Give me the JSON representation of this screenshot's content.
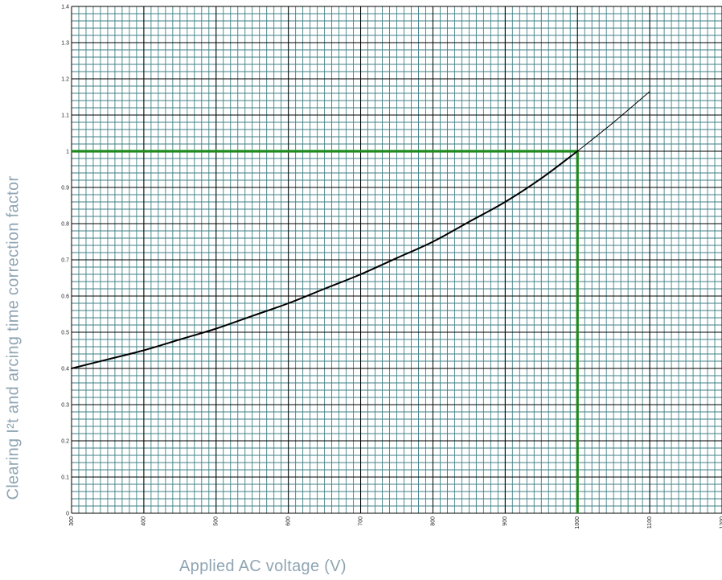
{
  "chart_data": {
    "type": "line",
    "title": "",
    "xlabel": "Applied AC voltage (V)",
    "ylabel": "Clearing I²t and arcing time correction factor",
    "xlim": [
      300,
      1200
    ],
    "ylim": [
      0,
      1.4
    ],
    "x_ticks": [
      "300",
      "400",
      "500",
      "600",
      "700",
      "800",
      "900",
      "1000",
      "1100",
      "1200"
    ],
    "y_ticks": [
      "0",
      "0.1",
      "0.2",
      "0.3",
      "0.4",
      "0.5",
      "0.6",
      "0.7",
      "0.8",
      "0.9",
      "1",
      "1.1",
      "1.2",
      "1.3",
      "1.4"
    ],
    "grid": true,
    "series": [
      {
        "values_x": [
          300,
          350,
          400,
          450,
          500,
          550,
          600,
          650,
          700,
          750,
          800,
          850,
          900,
          950,
          1000
        ],
        "values_y": [
          0.4,
          0.425,
          0.45,
          0.48,
          0.51,
          0.545,
          0.58,
          0.62,
          0.66,
          0.705,
          0.75,
          0.805,
          0.86,
          0.925,
          1.0
        ],
        "color": "#000000",
        "style": "thick"
      },
      {
        "values_x": [
          1000,
          1050,
          1100
        ],
        "values_y": [
          1.0,
          1.08,
          1.165
        ],
        "color": "#000000",
        "style": "thin"
      }
    ],
    "reference_lines": [
      {
        "orientation": "horizontal",
        "value": 1.0,
        "from_x": 300,
        "to_x": 1000,
        "color": "#1e8a1e"
      },
      {
        "orientation": "vertical",
        "value": 1000,
        "from_y": 0,
        "to_y": 1.0,
        "color": "#1e8a1e"
      }
    ],
    "colors": {
      "minor_grid": "#3f7f86",
      "major_grid": "#000000",
      "reference": "#1e8a1e"
    }
  }
}
